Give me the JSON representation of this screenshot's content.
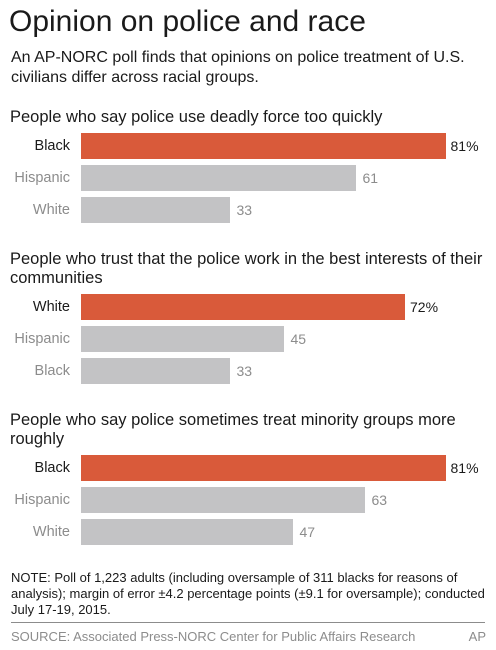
{
  "title": "Opinion on police and race",
  "subtitle": "An AP-NORC poll finds that opinions on police treatment of U.S. civilians differ across racial groups.",
  "colors": {
    "highlight": "#d95a3a",
    "bar": "#c3c3c5",
    "muted_text": "#8c8c8c",
    "text": "#1a1a1a"
  },
  "chart_data": [
    {
      "type": "bar",
      "orientation": "horizontal",
      "title": "People who say police use deadly force too quickly",
      "categories": [
        "Black",
        "Hispanic",
        "White"
      ],
      "values": [
        81,
        61,
        33
      ],
      "value_labels": [
        "81%",
        "61",
        "33"
      ],
      "highlight_index": 0,
      "xlim": [
        0,
        100
      ],
      "grid": false
    },
    {
      "type": "bar",
      "orientation": "horizontal",
      "title": "People who trust that the police work in the best interests of their communities",
      "categories": [
        "White",
        "Hispanic",
        "Black"
      ],
      "values": [
        72,
        45,
        33
      ],
      "value_labels": [
        "72%",
        "45",
        "33"
      ],
      "highlight_index": 0,
      "xlim": [
        0,
        100
      ],
      "grid": false
    },
    {
      "type": "bar",
      "orientation": "horizontal",
      "title": "People who say police sometimes treat minority groups more roughly",
      "categories": [
        "Black",
        "Hispanic",
        "White"
      ],
      "values": [
        81,
        63,
        47
      ],
      "value_labels": [
        "81%",
        "63",
        "47"
      ],
      "highlight_index": 0,
      "xlim": [
        0,
        100
      ],
      "grid": false
    }
  ],
  "note": "NOTE: Poll of 1,223 adults (including oversample of 311 blacks for reasons of analysis); margin of error ±4.2 percentage points (±9.1 for oversample); conducted July 17-19, 2015.",
  "source": "SOURCE: Associated Press-NORC Center for Public Affairs Research",
  "credit": "AP"
}
